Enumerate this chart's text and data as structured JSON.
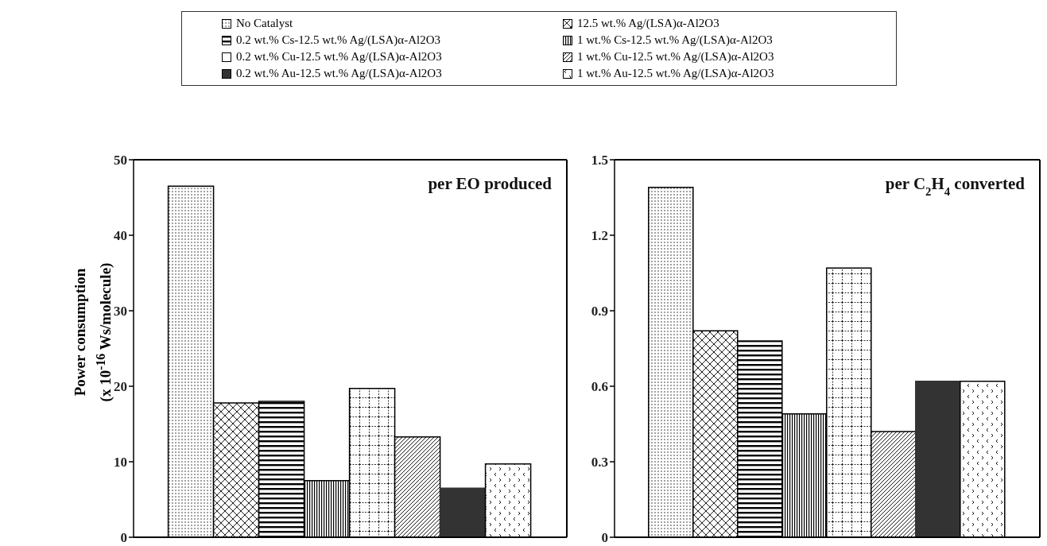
{
  "chart_data": [
    {
      "type": "bar",
      "ylabel": "Power consumption\n(x 10$^{-16}$ Ws/molecule)",
      "annotations": [
        "per EO produced"
      ],
      "categories": [
        null
      ],
      "legend": "top",
      "ylim": [
        0,
        50
      ],
      "yticks": [
        0,
        10,
        20,
        30,
        40,
        50
      ],
      "series": [
        {
          "name": "No Catalyst",
          "color": "#000000",
          "values": [
            46.5
          ]
        },
        {
          "name": "12.5 wt.% Ag/(LSA)α-Al2O3",
          "color": "#000000",
          "values": [
            17.8
          ]
        },
        {
          "name": "0.2 wt.% Cs-12.5 wt.% Ag/(LSA)α-Al2O3",
          "color": "#000000",
          "values": [
            18
          ]
        },
        {
          "name": "1 wt.% Cs-12.5 wt.% Ag/(LSA)α-Al2O3",
          "color": "#000000",
          "values": [
            7.5
          ]
        },
        {
          "name": "0.2 wt.% Cu-12.5 wt.% Ag/(LSA)α-Al2O3",
          "color": "#000000",
          "values": [
            19.7
          ]
        },
        {
          "name": "1 wt.% Cu-12.5 wt.% Ag/(LSA)α-Al2O3",
          "color": "#000000",
          "values": [
            13.3
          ]
        },
        {
          "name": "0.2 wt.% Au-12.5 wt.% Ag/(LSA)α-Al2O3",
          "color": "#333333",
          "values": [
            6.5
          ]
        },
        {
          "name": "1 wt.% Au-12.5 wt.% Ag/(LSA)α-Al2O3",
          "color": "#000000",
          "values": [
            9.7
          ]
        }
      ]
    },
    {
      "type": "bar",
      "annotations": [
        "per C$_{2}$H$_{4}$ converted"
      ],
      "categories": [
        null
      ],
      "ylim": [
        0,
        1.5
      ],
      "yticks": [
        0,
        0.3,
        0.6,
        0.9,
        1.2,
        1.5
      ],
      "series": [
        {
          "color": "#000000",
          "values": [
            1.39
          ]
        },
        {
          "color": "#000000",
          "values": [
            0.82
          ]
        },
        {
          "color": "#000000",
          "values": [
            0.78
          ]
        },
        {
          "color": "#000000",
          "values": [
            0.49
          ]
        },
        {
          "color": "#000000",
          "values": [
            1.07
          ]
        },
        {
          "color": "#000000",
          "values": [
            0.42
          ]
        },
        {
          "color": "#333333",
          "values": [
            0.62
          ]
        },
        {
          "color": "#000000",
          "values": [
            0.62
          ]
        }
      ]
    }
  ]
}
